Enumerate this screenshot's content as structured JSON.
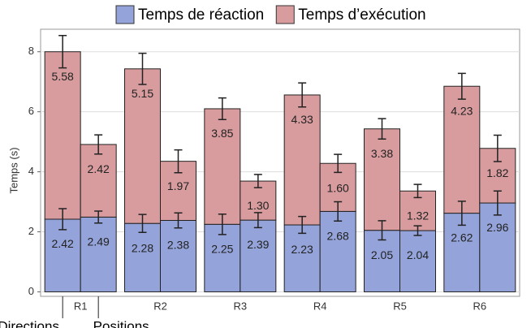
{
  "chart_data": {
    "type": "grouped-stacked-bar",
    "y_label": "Temps (s)",
    "categories": [
      "R1",
      "R2",
      "R3",
      "R4",
      "R5",
      "R6"
    ],
    "groups": [
      "Directions",
      "Positions"
    ],
    "series": [
      {
        "name": "Temps de réaction",
        "color": "#94a3d9",
        "values": [
          [
            2.42,
            2.49
          ],
          [
            2.28,
            2.38
          ],
          [
            2.25,
            2.39
          ],
          [
            2.23,
            2.68
          ],
          [
            2.05,
            2.04
          ],
          [
            2.62,
            2.96
          ]
        ],
        "value_labels": [
          [
            "2.42",
            "2.49"
          ],
          [
            "2.28",
            "2.38"
          ],
          [
            "2.25",
            "2.39"
          ],
          [
            "2.23",
            "2.68"
          ],
          [
            "2.05",
            "2.04"
          ],
          [
            "2.62",
            "2.96"
          ]
        ],
        "errors": [
          [
            0.35,
            0.2
          ],
          [
            0.3,
            0.25
          ],
          [
            0.34,
            0.25
          ],
          [
            0.28,
            0.32
          ],
          [
            0.32,
            0.16
          ],
          [
            0.4,
            0.4
          ]
        ]
      },
      {
        "name": "Temps d’exécution",
        "color": "#d89c9e",
        "values": [
          [
            5.58,
            2.42
          ],
          [
            5.15,
            1.97
          ],
          [
            3.85,
            1.3
          ],
          [
            4.33,
            1.6
          ],
          [
            3.38,
            1.32
          ],
          [
            4.23,
            1.82
          ]
        ],
        "value_labels": [
          [
            "5.58",
            "2.42"
          ],
          [
            "5.15",
            "1.97"
          ],
          [
            "3.85",
            "1.30"
          ],
          [
            "4.33",
            "1.60"
          ],
          [
            "3.38",
            "1.32"
          ],
          [
            "4.23",
            "1.82"
          ]
        ],
        "errors": [
          [
            0.54,
            0.32
          ],
          [
            0.52,
            0.38
          ],
          [
            0.36,
            0.22
          ],
          [
            0.4,
            0.3
          ],
          [
            0.34,
            0.22
          ],
          [
            0.43,
            0.44
          ]
        ]
      }
    ],
    "ylim": [
      -0.15,
      8.75
    ],
    "yticks": [
      0,
      2,
      4,
      6,
      8
    ],
    "grid": true,
    "legend": "top"
  }
}
